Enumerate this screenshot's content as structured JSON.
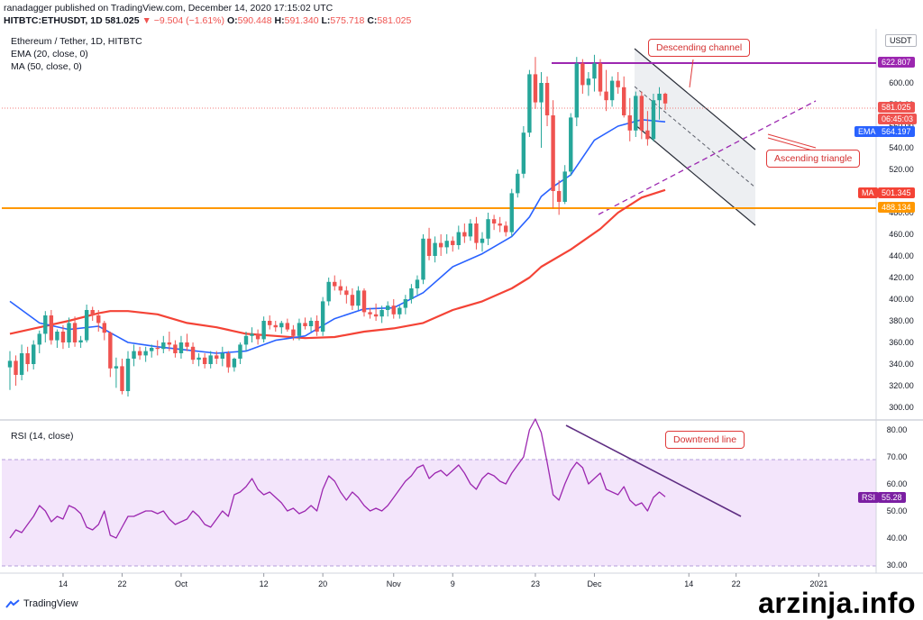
{
  "header": {
    "publisher_line": "ranadagger published on TradingView.com, December 14, 2020 17:15:02 UTC",
    "symbol": "HITBTC:ETHUSDT, 1D",
    "price": "581.025",
    "change": "▼ −9.504 (−1.61%)",
    "o_label": "O:",
    "o_value": "590.448",
    "h_label": "H:",
    "h_value": "591.340",
    "l_label": "L:",
    "l_value": "575.718",
    "c_label": "C:",
    "c_value": "581.025"
  },
  "legend": {
    "title": "Ethereum / Tether, 1D, HITBTC",
    "ema": "EMA (20, close, 0)",
    "ma": "MA (50, close, 0)",
    "rsi": "RSI (14, close)"
  },
  "annotations": {
    "descending_channel": "Descending channel",
    "ascending_triangle": "Ascending triangle",
    "downtrend_line": "Downtrend line"
  },
  "price_tags": {
    "currency": "USDT",
    "resistance": "622.807",
    "last": "581.025",
    "countdown": "06:45:03",
    "ema_label": "EMA",
    "ema_value": "564.197",
    "ma_label": "MA",
    "ma_value": "501.345",
    "support": "488.134",
    "rsi_label": "RSI",
    "rsi_value": "55.28"
  },
  "branding": {
    "logo": "TradingView",
    "watermark": "arzinja.info"
  },
  "colors": {
    "up": "#26a69a",
    "down": "#ef5350",
    "ema": "#2962ff",
    "ma": "#f44336",
    "rsi": "#9c27b0",
    "resistance": "#9c27b0",
    "support": "#ff9800",
    "annotation": "#e03a3a"
  },
  "chart_data": [
    {
      "type": "candlestick",
      "title": "Ethereum / Tether, 1D, HITBTC",
      "ylim": [
        290,
        650
      ],
      "y_ticks": [
        300,
        320,
        340,
        360,
        380,
        400,
        420,
        440,
        460,
        480,
        500,
        520,
        540,
        560,
        580,
        600
      ],
      "x_ticks": [
        "14",
        "22",
        "Oct",
        "12",
        "20",
        "Nov",
        "9",
        "23",
        "Dec",
        "14",
        "22",
        "2021"
      ],
      "x_tick_index": [
        9,
        19,
        29,
        43,
        53,
        65,
        75,
        89,
        99,
        115,
        123,
        137
      ],
      "candles": [
        [
          0,
          337,
          352,
          316,
          343
        ],
        [
          1,
          343,
          348,
          320,
          330
        ],
        [
          2,
          330,
          358,
          325,
          350
        ],
        [
          3,
          350,
          356,
          333,
          340
        ],
        [
          4,
          340,
          362,
          335,
          358
        ],
        [
          5,
          358,
          371,
          350,
          368
        ],
        [
          6,
          368,
          389,
          360,
          385
        ],
        [
          7,
          385,
          390,
          358,
          362
        ],
        [
          8,
          362,
          372,
          355,
          370
        ],
        [
          9,
          370,
          376,
          354,
          360
        ],
        [
          10,
          360,
          383,
          355,
          378
        ],
        [
          11,
          378,
          384,
          356,
          360
        ],
        [
          12,
          360,
          366,
          355,
          362
        ],
        [
          13,
          362,
          395,
          360,
          390
        ],
        [
          14,
          390,
          393,
          380,
          385
        ],
        [
          15,
          385,
          390,
          370,
          378
        ],
        [
          16,
          378,
          380,
          362,
          369
        ],
        [
          17,
          369,
          370,
          328,
          336
        ],
        [
          18,
          336,
          346,
          318,
          338
        ],
        [
          19,
          338,
          345,
          312,
          315
        ],
        [
          20,
          315,
          352,
          310,
          345
        ],
        [
          21,
          345,
          358,
          338,
          352
        ],
        [
          22,
          352,
          356,
          344,
          348
        ],
        [
          23,
          348,
          356,
          342,
          352
        ],
        [
          24,
          352,
          358,
          346,
          355
        ],
        [
          25,
          355,
          362,
          348,
          354
        ],
        [
          26,
          354,
          366,
          350,
          360
        ],
        [
          27,
          360,
          370,
          352,
          358
        ],
        [
          28,
          358,
          362,
          346,
          350
        ],
        [
          29,
          350,
          366,
          345,
          360
        ],
        [
          30,
          360,
          368,
          352,
          356
        ],
        [
          31,
          356,
          360,
          340,
          344
        ],
        [
          32,
          344,
          350,
          338,
          346
        ],
        [
          33,
          346,
          350,
          336,
          340
        ],
        [
          34,
          340,
          352,
          336,
          348
        ],
        [
          35,
          348,
          352,
          340,
          345
        ],
        [
          36,
          345,
          356,
          338,
          350
        ],
        [
          37,
          350,
          352,
          332,
          337
        ],
        [
          38,
          337,
          346,
          333,
          345
        ],
        [
          39,
          345,
          360,
          340,
          358
        ],
        [
          40,
          358,
          370,
          352,
          366
        ],
        [
          41,
          366,
          374,
          360,
          368
        ],
        [
          42,
          368,
          372,
          358,
          363
        ],
        [
          43,
          363,
          384,
          360,
          380
        ],
        [
          44,
          380,
          385,
          372,
          376
        ],
        [
          45,
          376,
          380,
          370,
          374
        ],
        [
          46,
          374,
          380,
          368,
          378
        ],
        [
          47,
          378,
          382,
          370,
          372
        ],
        [
          48,
          372,
          376,
          362,
          366
        ],
        [
          49,
          366,
          382,
          362,
          378
        ],
        [
          50,
          378,
          383,
          372,
          375
        ],
        [
          51,
          375,
          383,
          370,
          380
        ],
        [
          52,
          380,
          385,
          366,
          370
        ],
        [
          53,
          370,
          402,
          366,
          398
        ],
        [
          54,
          398,
          420,
          394,
          416
        ],
        [
          55,
          416,
          422,
          408,
          412
        ],
        [
          56,
          412,
          418,
          404,
          408
        ],
        [
          57,
          408,
          412,
          396,
          404
        ],
        [
          58,
          404,
          410,
          390,
          394
        ],
        [
          59,
          394,
          412,
          390,
          408
        ],
        [
          60,
          408,
          410,
          384,
          388
        ],
        [
          61,
          388,
          392,
          382,
          386
        ],
        [
          62,
          386,
          396,
          380,
          384
        ],
        [
          63,
          384,
          394,
          378,
          390
        ],
        [
          64,
          390,
          398,
          384,
          394
        ],
        [
          65,
          394,
          400,
          382,
          386
        ],
        [
          66,
          386,
          394,
          382,
          392
        ],
        [
          67,
          392,
          404,
          386,
          400
        ],
        [
          68,
          400,
          414,
          396,
          410
        ],
        [
          69,
          410,
          422,
          404,
          418
        ],
        [
          70,
          418,
          460,
          414,
          456
        ],
        [
          71,
          456,
          466,
          436,
          440
        ],
        [
          72,
          440,
          458,
          434,
          452
        ],
        [
          73,
          452,
          460,
          440,
          448
        ],
        [
          74,
          448,
          460,
          442,
          454
        ],
        [
          75,
          454,
          458,
          444,
          450
        ],
        [
          76,
          450,
          468,
          446,
          462
        ],
        [
          77,
          462,
          470,
          452,
          458
        ],
        [
          78,
          458,
          474,
          454,
          470
        ],
        [
          79,
          470,
          476,
          446,
          452
        ],
        [
          80,
          452,
          462,
          444,
          456
        ],
        [
          81,
          456,
          480,
          450,
          474
        ],
        [
          82,
          474,
          478,
          464,
          470
        ],
        [
          83,
          470,
          476,
          462,
          468
        ],
        [
          84,
          468,
          472,
          458,
          462
        ],
        [
          85,
          462,
          502,
          458,
          498
        ],
        [
          86,
          498,
          520,
          494,
          516
        ],
        [
          87,
          516,
          560,
          512,
          554
        ],
        [
          88,
          554,
          612,
          550,
          608
        ],
        [
          89,
          608,
          624,
          576,
          582
        ],
        [
          90,
          582,
          610,
          540,
          600
        ],
        [
          91,
          600,
          606,
          560,
          570
        ],
        [
          92,
          570,
          584,
          484,
          500
        ],
        [
          93,
          500,
          510,
          478,
          490
        ],
        [
          94,
          490,
          524,
          488,
          518
        ],
        [
          95,
          518,
          572,
          514,
          568
        ],
        [
          96,
          568,
          624,
          560,
          618
        ],
        [
          97,
          618,
          622,
          590,
          598
        ],
        [
          98,
          598,
          610,
          588,
          604
        ],
        [
          99,
          604,
          626,
          592,
          618
        ],
        [
          100,
          618,
          622,
          588,
          592
        ],
        [
          101,
          592,
          612,
          574,
          584
        ],
        [
          102,
          584,
          606,
          578,
          602
        ],
        [
          103,
          602,
          610,
          590,
          596
        ],
        [
          104,
          596,
          606,
          568,
          570
        ],
        [
          105,
          570,
          586,
          546,
          556
        ],
        [
          106,
          556,
          592,
          550,
          588
        ],
        [
          107,
          588,
          592,
          548,
          556
        ],
        [
          108,
          556,
          574,
          542,
          548
        ],
        [
          109,
          548,
          590,
          546,
          584
        ],
        [
          110,
          584,
          596,
          566,
          590
        ],
        [
          111,
          590,
          591,
          575,
          581
        ]
      ]
    },
    {
      "type": "line",
      "title": "EMA (20, close, 0)",
      "points": [
        [
          0,
          398
        ],
        [
          5,
          378
        ],
        [
          10,
          372
        ],
        [
          15,
          375
        ],
        [
          20,
          360
        ],
        [
          25,
          356
        ],
        [
          30,
          353
        ],
        [
          35,
          350
        ],
        [
          40,
          352
        ],
        [
          45,
          362
        ],
        [
          50,
          366
        ],
        [
          55,
          382
        ],
        [
          60,
          391
        ],
        [
          65,
          392
        ],
        [
          70,
          406
        ],
        [
          75,
          430
        ],
        [
          80,
          442
        ],
        [
          85,
          458
        ],
        [
          88,
          476
        ],
        [
          90,
          495
        ],
        [
          92,
          504
        ],
        [
          95,
          515
        ],
        [
          99,
          547
        ],
        [
          103,
          560
        ],
        [
          107,
          566
        ],
        [
          111,
          564
        ]
      ]
    },
    {
      "type": "line",
      "title": "MA (50, close, 0)",
      "points": [
        [
          0,
          368
        ],
        [
          5,
          374
        ],
        [
          10,
          380
        ],
        [
          15,
          387
        ],
        [
          17,
          389
        ],
        [
          20,
          389
        ],
        [
          25,
          386
        ],
        [
          30,
          378
        ],
        [
          35,
          374
        ],
        [
          40,
          368
        ],
        [
          45,
          366
        ],
        [
          50,
          364
        ],
        [
          55,
          365
        ],
        [
          60,
          370
        ],
        [
          65,
          373
        ],
        [
          70,
          378
        ],
        [
          75,
          390
        ],
        [
          80,
          398
        ],
        [
          85,
          410
        ],
        [
          88,
          420
        ],
        [
          90,
          430
        ],
        [
          95,
          446
        ],
        [
          100,
          465
        ],
        [
          103,
          480
        ],
        [
          107,
          494
        ],
        [
          111,
          501
        ]
      ]
    },
    {
      "type": "line",
      "title": "RSI (14, close)",
      "ylim": [
        27,
        83
      ],
      "y_ticks": [
        30,
        40,
        50,
        60,
        70,
        80
      ],
      "values": [
        40,
        43,
        42,
        45,
        48,
        52,
        50,
        46,
        48,
        47,
        52,
        51,
        49,
        44,
        43,
        45,
        50,
        41,
        40,
        44,
        48,
        48,
        49,
        50,
        50,
        49,
        50,
        47,
        45,
        46,
        47,
        50,
        48,
        45,
        44,
        47,
        50,
        48,
        56,
        57,
        59,
        62,
        58,
        56,
        57,
        55,
        53,
        50,
        51,
        49,
        50,
        52,
        50,
        58,
        63,
        61,
        57,
        54,
        57,
        55,
        52,
        50,
        51,
        50,
        52,
        55,
        58,
        61,
        63,
        66,
        67,
        62,
        64,
        65,
        63,
        65,
        67,
        64,
        60,
        58,
        62,
        64,
        63,
        61,
        60,
        64,
        67,
        70,
        80,
        84,
        79,
        68,
        56,
        54,
        60,
        65,
        68,
        66,
        60,
        62,
        64,
        58,
        57,
        56,
        59,
        54,
        52,
        53,
        50,
        55,
        57,
        55.28
      ]
    }
  ]
}
